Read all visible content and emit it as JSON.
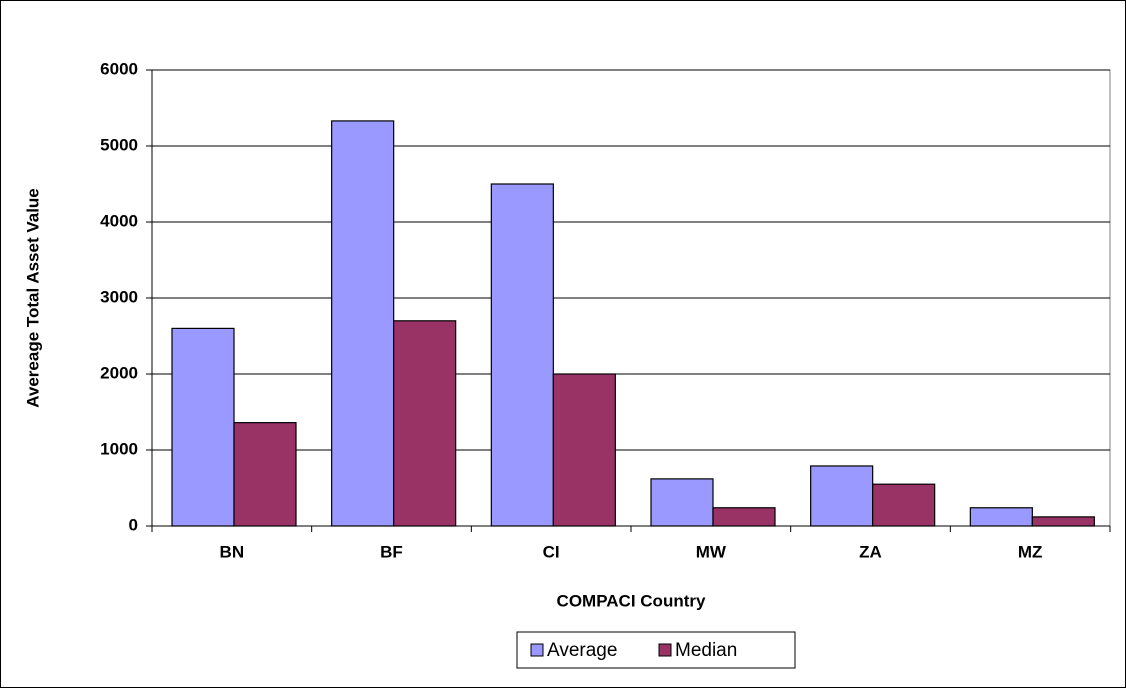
{
  "chart_data": {
    "type": "bar",
    "x_label": "COMPACI Country",
    "y_label": "Avereage Total Asset Value",
    "categories": [
      "BN",
      "BF",
      "CI",
      "MW",
      "ZA",
      "MZ"
    ],
    "series": [
      {
        "name": "Average",
        "color": "#9999ff",
        "values": [
          2600,
          5330,
          4500,
          620,
          790,
          240
        ]
      },
      {
        "name": "Median",
        "color": "#993366",
        "values": [
          1360,
          2700,
          2000,
          240,
          550,
          120
        ]
      }
    ],
    "ylim": [
      0,
      6000
    ],
    "yticks": [
      0,
      1000,
      2000,
      3000,
      4000,
      5000,
      6000
    ],
    "grid": true,
    "legend": "bottom"
  }
}
